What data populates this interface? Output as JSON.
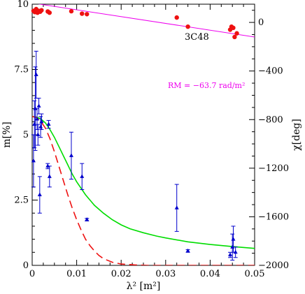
{
  "chart_data": {
    "type": "scatter",
    "title": "",
    "xlabel": "λ² [m²]",
    "ylabel_left": "m[%]",
    "ylabel_right": "χ[deg]",
    "xlim": [
      0,
      0.05
    ],
    "ylim_left": [
      0,
      10
    ],
    "ylim_right": [
      -2000,
      150
    ],
    "x_ticks": [
      "0",
      "0.01",
      "0.02",
      "0.03",
      "0.04",
      "0.05"
    ],
    "y_left_ticks": [
      "0",
      "2.5",
      "5",
      "7.5",
      "10"
    ],
    "y_right_ticks": [
      "0",
      "−400",
      "−800",
      "−1200",
      "−1600",
      "−2000"
    ],
    "grid": false,
    "annotations": {
      "source": "3C48",
      "rm": "RM = −63.7 rad/m²"
    },
    "colors": {
      "pol_points": "#0000cc",
      "angle_points": "#ee1111",
      "rm_fit": "#ee00ee",
      "model_green": "#00dd00",
      "model_red": "#ee1111"
    },
    "series": [
      {
        "axis": "left",
        "marker": "triangle",
        "points": [
          {
            "x": 0.0003,
            "y": 4.0,
            "err": 1.0
          },
          {
            "x": 0.0005,
            "y": 5.4,
            "err": 0.9
          },
          {
            "x": 0.0007,
            "y": 6.0,
            "err": 1.6
          },
          {
            "x": 0.0009,
            "y": 7.3,
            "err": 0.9
          },
          {
            "x": 0.0011,
            "y": 5.6,
            "err": 0.4
          },
          {
            "x": 0.0013,
            "y": 5.0,
            "err": 0.4
          },
          {
            "x": 0.0015,
            "y": 6.1,
            "err": 0.3
          },
          {
            "x": 0.0017,
            "y": 2.7,
            "err": 0.7
          },
          {
            "x": 0.0019,
            "y": 5.3,
            "err": 0.4
          },
          {
            "x": 0.0021,
            "y": 5.5,
            "err": 0.3
          },
          {
            "x": 0.0035,
            "y": 3.8,
            "err": 0.1
          },
          {
            "x": 0.0037,
            "y": 5.4,
            "err": 0.15
          },
          {
            "x": 0.0039,
            "y": 3.4,
            "err": 0.4
          },
          {
            "x": 0.0088,
            "y": 4.2,
            "err": 0.9
          },
          {
            "x": 0.0112,
            "y": 3.4,
            "err": 0.5
          },
          {
            "x": 0.0123,
            "y": 1.75,
            "err": 0.05
          },
          {
            "x": 0.0325,
            "y": 2.2,
            "err": 0.9
          },
          {
            "x": 0.035,
            "y": 0.55,
            "err": 0.05
          },
          {
            "x": 0.0445,
            "y": 0.4,
            "err": 0.1
          },
          {
            "x": 0.045,
            "y": 0.7,
            "err": 0.5
          },
          {
            "x": 0.0452,
            "y": 1.0,
            "err": 0.5
          },
          {
            "x": 0.0457,
            "y": 0.5,
            "err": 0.2
          }
        ]
      },
      {
        "axis": "right",
        "marker": "circle",
        "points": [
          {
            "x": 0.0003,
            "y": 95
          },
          {
            "x": 0.0006,
            "y": 85
          },
          {
            "x": 0.0009,
            "y": 110
          },
          {
            "x": 0.0012,
            "y": 80
          },
          {
            "x": 0.0015,
            "y": 95
          },
          {
            "x": 0.0018,
            "y": 88
          },
          {
            "x": 0.0021,
            "y": 100
          },
          {
            "x": 0.0035,
            "y": 90
          },
          {
            "x": 0.0039,
            "y": 80
          },
          {
            "x": 0.0088,
            "y": 92
          },
          {
            "x": 0.0112,
            "y": 72
          },
          {
            "x": 0.0123,
            "y": 68
          },
          {
            "x": 0.0325,
            "y": 40
          },
          {
            "x": 0.035,
            "y": -35
          },
          {
            "x": 0.0445,
            "y": -60
          },
          {
            "x": 0.0448,
            "y": -35
          },
          {
            "x": 0.0452,
            "y": -45
          },
          {
            "x": 0.0455,
            "y": -120
          },
          {
            "x": 0.046,
            "y": -90
          }
        ]
      },
      {
        "axis": "right",
        "style": "line",
        "color": "rm_fit",
        "points": [
          {
            "x": 0,
            "y": 160
          },
          {
            "x": 0.05,
            "y": -120
          }
        ]
      },
      {
        "axis": "left",
        "style": "line",
        "color": "model_green",
        "points": [
          {
            "x": 0.0,
            "y": 5.7
          },
          {
            "x": 0.001,
            "y": 5.68
          },
          {
            "x": 0.002,
            "y": 5.6
          },
          {
            "x": 0.003,
            "y": 5.45
          },
          {
            "x": 0.004,
            "y": 5.2
          },
          {
            "x": 0.005,
            "y": 4.9
          },
          {
            "x": 0.006,
            "y": 4.55
          },
          {
            "x": 0.007,
            "y": 4.2
          },
          {
            "x": 0.008,
            "y": 3.85
          },
          {
            "x": 0.009,
            "y": 3.5
          },
          {
            "x": 0.01,
            "y": 3.2
          },
          {
            "x": 0.012,
            "y": 2.7
          },
          {
            "x": 0.014,
            "y": 2.3
          },
          {
            "x": 0.016,
            "y": 2.0
          },
          {
            "x": 0.018,
            "y": 1.75
          },
          {
            "x": 0.02,
            "y": 1.55
          },
          {
            "x": 0.022,
            "y": 1.4
          },
          {
            "x": 0.025,
            "y": 1.25
          },
          {
            "x": 0.028,
            "y": 1.12
          },
          {
            "x": 0.03,
            "y": 1.05
          },
          {
            "x": 0.035,
            "y": 0.9
          },
          {
            "x": 0.04,
            "y": 0.8
          },
          {
            "x": 0.045,
            "y": 0.72
          },
          {
            "x": 0.05,
            "y": 0.65
          }
        ]
      },
      {
        "axis": "left",
        "style": "dashed",
        "color": "model_red",
        "points": [
          {
            "x": 0.0,
            "y": 5.7
          },
          {
            "x": 0.001,
            "y": 5.66
          },
          {
            "x": 0.002,
            "y": 5.5
          },
          {
            "x": 0.003,
            "y": 5.25
          },
          {
            "x": 0.004,
            "y": 4.85
          },
          {
            "x": 0.005,
            "y": 4.35
          },
          {
            "x": 0.006,
            "y": 3.8
          },
          {
            "x": 0.007,
            "y": 3.25
          },
          {
            "x": 0.008,
            "y": 2.7
          },
          {
            "x": 0.009,
            "y": 2.2
          },
          {
            "x": 0.01,
            "y": 1.75
          },
          {
            "x": 0.011,
            "y": 1.35
          },
          {
            "x": 0.012,
            "y": 1.0
          },
          {
            "x": 0.013,
            "y": 0.75
          },
          {
            "x": 0.014,
            "y": 0.55
          },
          {
            "x": 0.015,
            "y": 0.38
          },
          {
            "x": 0.016,
            "y": 0.26
          },
          {
            "x": 0.018,
            "y": 0.12
          },
          {
            "x": 0.02,
            "y": 0.05
          },
          {
            "x": 0.023,
            "y": 0.02
          },
          {
            "x": 0.026,
            "y": 0.0
          },
          {
            "x": 0.05,
            "y": 0.0
          }
        ]
      }
    ]
  }
}
